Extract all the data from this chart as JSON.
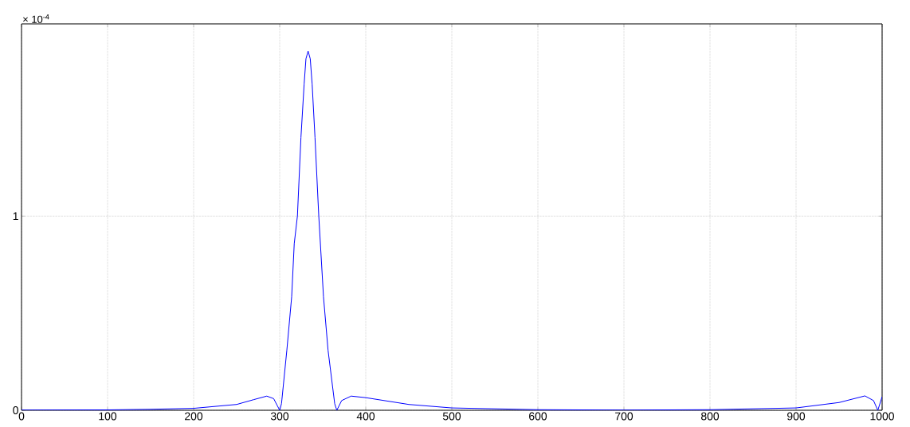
{
  "chart_data": {
    "type": "line",
    "annotations": [
      "× 10$^{-4}$"
    ],
    "x": [
      0,
      100,
      150,
      200,
      250,
      270,
      285,
      293,
      300,
      302.1,
      308.3,
      313.9,
      316.9,
      320.6,
      324.7,
      328.4,
      330.5,
      333,
      335.5,
      337.7,
      341,
      345.4,
      350.9,
      356.2,
      363.9,
      366.4,
      372,
      383,
      400,
      450,
      500,
      600,
      700,
      800,
      900,
      950,
      980,
      990,
      995,
      1000
    ],
    "values": [
      0.001,
      0.002,
      0.005,
      0.01,
      0.03,
      0.055,
      0.073,
      0.06,
      0,
      0.034,
      0.309,
      0.584,
      0.858,
      1.001,
      1.406,
      1.68,
      1.81,
      1.85,
      1.81,
      1.68,
      1.406,
      1.001,
      0.584,
      0.309,
      0.034,
      0,
      0.05,
      0.073,
      0.065,
      0.03,
      0.012,
      0.003,
      0.001,
      0.003,
      0.012,
      0.04,
      0.074,
      0.05,
      0,
      0.07
    ],
    "color": "#0000ff",
    "xlim": [
      0,
      1000
    ],
    "ylim": [
      0,
      1.99
    ],
    "xticks": [
      0,
      100,
      200,
      300,
      400,
      500,
      600,
      700,
      800,
      900,
      1000
    ],
    "yticks": [
      0,
      1
    ],
    "grid": true,
    "line_style": "solid"
  }
}
